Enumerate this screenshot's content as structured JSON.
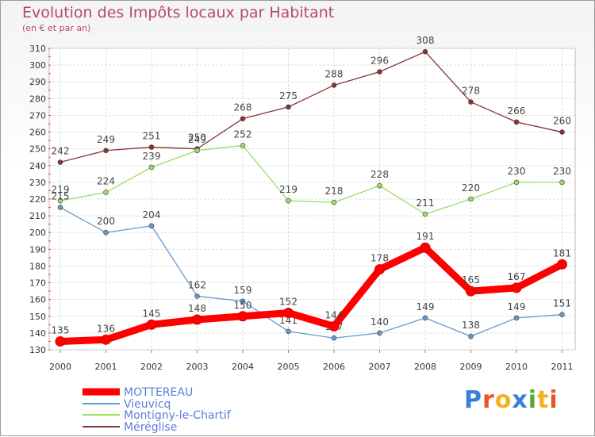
{
  "title": "Evolution des Impôts locaux par Habitant",
  "subtitle": "(en € et par an)",
  "logo": {
    "text": "Proxiti",
    "colors": [
      "#3b7fd6",
      "#e8542e",
      "#f2b21c",
      "#3b7fd6",
      "#5aa832",
      "#f2b21c",
      "#e8542e"
    ]
  },
  "chart_data": {
    "type": "line",
    "title": "Evolution des Impôts locaux par Habitant",
    "subtitle": "(en € et par an)",
    "x": [
      "2000",
      "2001",
      "2002",
      "2003",
      "2004",
      "2005",
      "2006",
      "2007",
      "2008",
      "2009",
      "2010",
      "2011"
    ],
    "ylim": [
      130,
      310
    ],
    "yticks": [
      130,
      140,
      150,
      160,
      170,
      180,
      190,
      200,
      210,
      220,
      230,
      240,
      250,
      260,
      270,
      280,
      290,
      300,
      310
    ],
    "grid": true,
    "legend_position": "bottom-left",
    "series": [
      {
        "name": "MOTTEREAU",
        "color": "#ff0000",
        "values": [
          135,
          136,
          145,
          148,
          150,
          152,
          144,
          178,
          191,
          165,
          167,
          181
        ]
      },
      {
        "name": "Vieuvicq",
        "color": "#6699cc",
        "values": [
          215,
          200,
          204,
          162,
          159,
          141,
          137,
          140,
          149,
          138,
          149,
          151
        ]
      },
      {
        "name": "Montigny-le-Chartif",
        "color": "#99dd66",
        "values": [
          219,
          224,
          239,
          249,
          252,
          219,
          218,
          228,
          211,
          220,
          230,
          230
        ]
      },
      {
        "name": "Méréglise",
        "color": "#883333",
        "values": [
          242,
          249,
          251,
          250,
          268,
          275,
          288,
          296,
          308,
          278,
          266,
          260
        ]
      }
    ]
  }
}
